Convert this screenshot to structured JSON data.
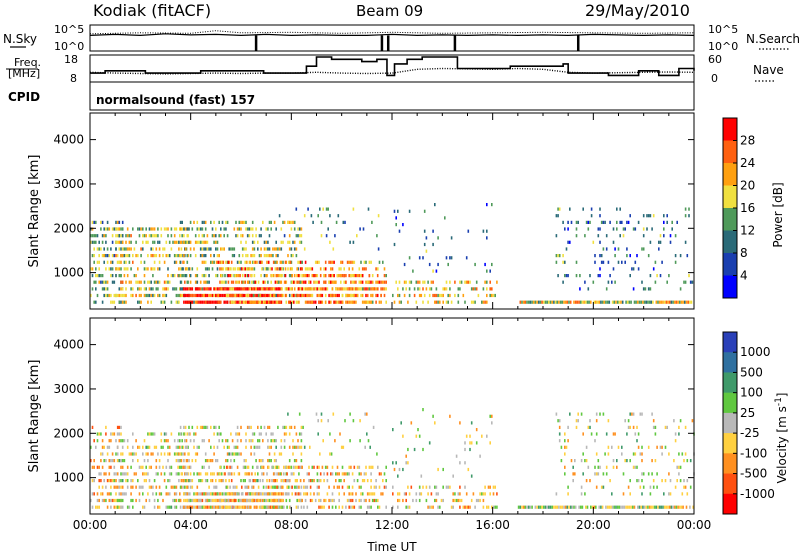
{
  "header": {
    "station": "Kodiak (fitACF)",
    "beam": "Beam 09",
    "date": "29/May/2010"
  },
  "labels": {
    "nsky": "N.Sky",
    "nsearch": "N.Search",
    "freq_line1": "Freq.",
    "freq_line2": "[MHz]",
    "cpid": "CPID",
    "nave": "Nave",
    "cpid_text": "normalsound (fast) 157",
    "noise_tick_top_left": "10^5",
    "noise_tick_bottom_left": "10^0",
    "noise_tick_top_right": "10^5",
    "noise_tick_bottom_right": "10^0",
    "freq_ticks_left": [
      "18",
      "8"
    ],
    "nave_ticks_right": [
      "60",
      "0"
    ]
  },
  "chart_data": [
    {
      "type": "line",
      "name": "noise-panel",
      "x_unit": "hours UT",
      "series": [
        {
          "name": "N.Sky",
          "style": "solid",
          "values": [
            [
              0,
              3.0
            ],
            [
              1,
              3.2
            ],
            [
              2,
              3.0
            ],
            [
              3,
              3.3
            ],
            [
              4,
              3.1
            ],
            [
              5,
              3.2
            ],
            [
              6,
              3.0
            ],
            [
              7,
              3.2
            ],
            [
              8,
              3.0
            ],
            [
              9,
              3.1
            ],
            [
              10,
              3.0
            ],
            [
              11,
              3.0
            ],
            [
              12,
              3.2
            ],
            [
              13,
              3.0
            ],
            [
              14,
              3.1
            ],
            [
              15,
              3.0
            ],
            [
              16,
              3.1
            ],
            [
              17,
              3.0
            ],
            [
              18,
              3.1
            ],
            [
              19,
              3.0
            ],
            [
              20,
              3.2
            ],
            [
              21,
              3.1
            ],
            [
              22,
              3.0
            ],
            [
              23,
              3.1
            ],
            [
              24,
              3.0
            ]
          ]
        },
        {
          "name": "N.Search",
          "style": "dotted",
          "values": [
            [
              0,
              3.3
            ],
            [
              2,
              3.5
            ],
            [
              4,
              3.4
            ],
            [
              5,
              3.9
            ],
            [
              6,
              3.5
            ],
            [
              8,
              3.6
            ],
            [
              10,
              3.4
            ],
            [
              12,
              3.6
            ],
            [
              14,
              3.4
            ],
            [
              16,
              3.5
            ],
            [
              18,
              3.6
            ],
            [
              20,
              3.5
            ],
            [
              22,
              3.4
            ],
            [
              24,
              3.5
            ]
          ]
        }
      ],
      "drops_hours": [
        6.6,
        11.6,
        11.85,
        14.5,
        19.4
      ],
      "ylim_log10": [
        0,
        5
      ]
    },
    {
      "type": "line",
      "name": "freq-nave-panel",
      "x_unit": "hours UT",
      "series": [
        {
          "name": "Freq",
          "unit": "MHz",
          "style": "solid-step",
          "values": [
            [
              0,
              11
            ],
            [
              0.6,
              12
            ],
            [
              2.2,
              11
            ],
            [
              4.4,
              12
            ],
            [
              6.9,
              11
            ],
            [
              8.6,
              14
            ],
            [
              9.0,
              18
            ],
            [
              9.6,
              17
            ],
            [
              10.8,
              16
            ],
            [
              11.4,
              17
            ],
            [
              11.8,
              10
            ],
            [
              12.1,
              15
            ],
            [
              12.6,
              17
            ],
            [
              13.2,
              18
            ],
            [
              14.4,
              18
            ],
            [
              14.6,
              13
            ],
            [
              16.7,
              14
            ],
            [
              18.8,
              15
            ],
            [
              19.0,
              11
            ],
            [
              20.6,
              10
            ],
            [
              21.8,
              12
            ],
            [
              22.6,
              10
            ],
            [
              23.4,
              13
            ],
            [
              24,
              12
            ]
          ]
        },
        {
          "name": "Nave",
          "style": "dotted",
          "values": [
            [
              0,
              20
            ],
            [
              1,
              18
            ],
            [
              2,
              17
            ],
            [
              3,
              16
            ],
            [
              4,
              17
            ],
            [
              5,
              18
            ],
            [
              6,
              17
            ],
            [
              7,
              18
            ],
            [
              8,
              18
            ],
            [
              9,
              20
            ],
            [
              10,
              18
            ],
            [
              11,
              17
            ],
            [
              12,
              18
            ],
            [
              13,
              28
            ],
            [
              14,
              30
            ],
            [
              15,
              29
            ],
            [
              16,
              28
            ],
            [
              17,
              30
            ],
            [
              18,
              28
            ],
            [
              19,
              20
            ],
            [
              20,
              18
            ],
            [
              21,
              19
            ],
            [
              22,
              20
            ],
            [
              23,
              21
            ],
            [
              24,
              20
            ]
          ]
        }
      ],
      "freq_ylim": [
        8,
        18
      ],
      "nave_ylim": [
        0,
        60
      ]
    },
    {
      "type": "heatmap",
      "name": "power-panel",
      "title": "",
      "xlabel": "",
      "ylabel": "Slant Range [km]",
      "x_unit": "hours UT",
      "xlim": [
        0,
        24
      ],
      "ylim": [
        180,
        4600
      ],
      "yticks": [
        1000,
        2000,
        3000,
        4000
      ],
      "colorbar": {
        "label": "Power [dB]",
        "range": [
          0,
          32
        ],
        "ticks": [
          4,
          8,
          12,
          16,
          20,
          24,
          28
        ],
        "colors": [
          "#0000ff",
          "#1a3fb0",
          "#2a6a78",
          "#4f9a5a",
          "#f0e040",
          "#ffa010",
          "#ff6010",
          "#ff0000"
        ]
      },
      "patches": [
        {
          "t0": 0.0,
          "t1": 1.3,
          "r0": 300,
          "r1": 2100,
          "level": 0.45,
          "density": 0.55
        },
        {
          "t0": 1.0,
          "t1": 4.0,
          "r0": 300,
          "r1": 2000,
          "level": 0.55,
          "density": 0.5
        },
        {
          "t0": 3.5,
          "t1": 8.4,
          "r0": 300,
          "r1": 2100,
          "level": 0.5,
          "density": 0.45
        },
        {
          "t0": 3.7,
          "t1": 7.6,
          "r0": 300,
          "r1": 600,
          "level": 0.95,
          "density": 0.95
        },
        {
          "t0": 5.0,
          "t1": 11.8,
          "r0": 300,
          "r1": 1200,
          "level": 0.7,
          "density": 0.5
        },
        {
          "t0": 8.0,
          "t1": 11.6,
          "r0": 300,
          "r1": 900,
          "level": 0.75,
          "density": 0.45
        },
        {
          "t0": 7.5,
          "t1": 11.5,
          "r0": 1500,
          "r1": 2500,
          "level": 0.35,
          "density": 0.08
        },
        {
          "t0": 12.0,
          "t1": 16.2,
          "r0": 300,
          "r1": 800,
          "level": 0.6,
          "density": 0.45
        },
        {
          "t0": 12.0,
          "t1": 16.0,
          "r0": 1000,
          "r1": 2600,
          "level": 0.3,
          "density": 0.06
        },
        {
          "t0": 17.0,
          "t1": 24.0,
          "r0": 300,
          "r1": 400,
          "level": 0.55,
          "density": 0.9
        },
        {
          "t0": 18.5,
          "t1": 24.0,
          "r0": 600,
          "r1": 2400,
          "level": 0.3,
          "density": 0.15
        }
      ]
    },
    {
      "type": "heatmap",
      "name": "velocity-panel",
      "title": "",
      "xlabel": "Time UT",
      "ylabel": "Slant Range [km]",
      "x_unit": "hours UT",
      "xlim": [
        0,
        24
      ],
      "ylim": [
        180,
        4600
      ],
      "yticks": [
        1000,
        2000,
        3000,
        4000
      ],
      "xticks": [
        "00:00",
        "04:00",
        "08:00",
        "12:00",
        "16:00",
        "20:00",
        "00:00"
      ],
      "colorbar": {
        "label": "Velocity [m s^-1]",
        "ticks": [
          "1000",
          "500",
          "100",
          "25",
          "-25",
          "-100",
          "-500",
          "-1000"
        ],
        "colors": [
          "#2a40b8",
          "#2f70a0",
          "#3f9a6a",
          "#60c840",
          "#b8b8b8",
          "#ffd040",
          "#ff9020",
          "#ff5010",
          "#ff0000"
        ]
      },
      "patches": [
        {
          "t0": 0.0,
          "t1": 1.3,
          "r0": 300,
          "r1": 2100,
          "level": 0.6,
          "density": 0.5
        },
        {
          "t0": 1.0,
          "t1": 4.0,
          "r0": 300,
          "r1": 2000,
          "level": 0.55,
          "density": 0.45
        },
        {
          "t0": 3.5,
          "t1": 8.4,
          "r0": 300,
          "r1": 2100,
          "level": 0.55,
          "density": 0.4
        },
        {
          "t0": 3.7,
          "t1": 7.6,
          "r0": 300,
          "r1": 600,
          "level": 0.62,
          "density": 0.9
        },
        {
          "t0": 5.0,
          "t1": 11.8,
          "r0": 300,
          "r1": 1200,
          "level": 0.6,
          "density": 0.45
        },
        {
          "t0": 7.5,
          "t1": 11.5,
          "r0": 1500,
          "r1": 2500,
          "level": 0.5,
          "density": 0.08
        },
        {
          "t0": 12.0,
          "t1": 16.2,
          "r0": 300,
          "r1": 800,
          "level": 0.6,
          "density": 0.4
        },
        {
          "t0": 12.0,
          "t1": 16.0,
          "r0": 1000,
          "r1": 2600,
          "level": 0.5,
          "density": 0.06
        },
        {
          "t0": 17.0,
          "t1": 24.0,
          "r0": 300,
          "r1": 400,
          "level": 0.5,
          "density": 0.9
        },
        {
          "t0": 18.5,
          "t1": 24.0,
          "r0": 600,
          "r1": 2400,
          "level": 0.5,
          "density": 0.15
        }
      ]
    }
  ]
}
